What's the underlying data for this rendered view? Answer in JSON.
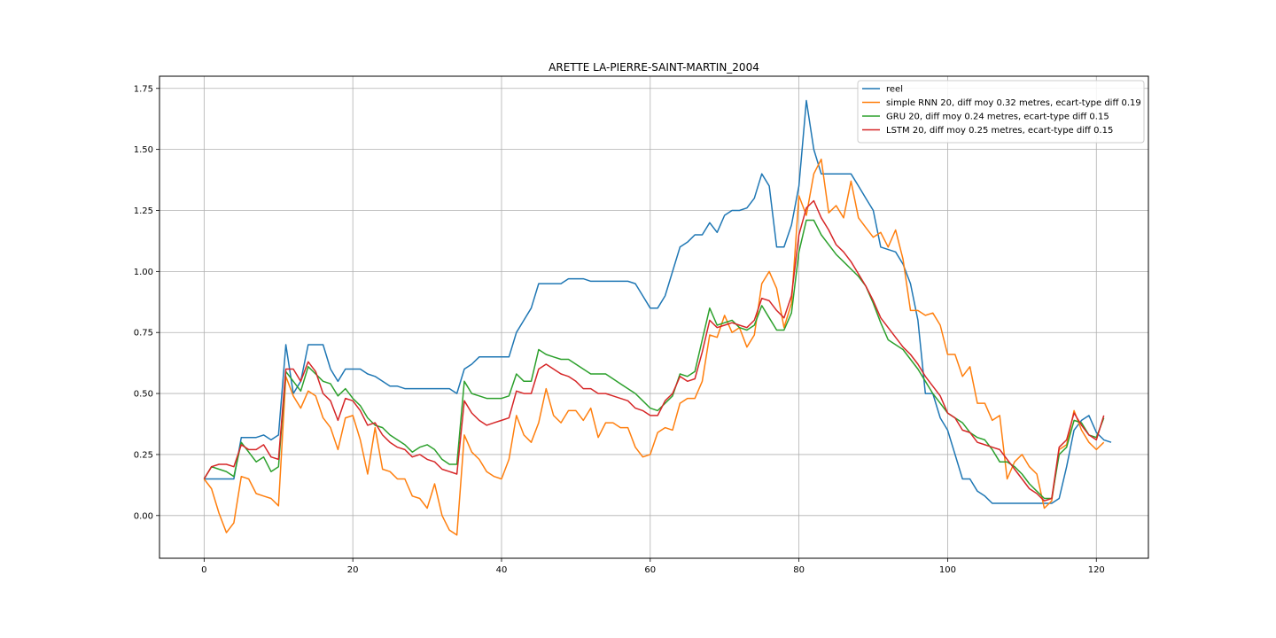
{
  "chart_data": {
    "type": "line",
    "title": "ARETTE LA-PIERRE-SAINT-MARTIN_2004",
    "xlabel": "",
    "ylabel": "",
    "xlim": [
      -6,
      127
    ],
    "ylim": [
      -0.175,
      1.8
    ],
    "xticks": [
      0,
      20,
      40,
      60,
      80,
      100,
      120
    ],
    "yticks": [
      0.0,
      0.25,
      0.5,
      0.75,
      1.0,
      1.25,
      1.5,
      1.75
    ],
    "ytick_labels": [
      "0.00",
      "0.25",
      "0.50",
      "0.75",
      "1.00",
      "1.25",
      "1.50",
      "1.75"
    ],
    "grid": true,
    "legend_position": "top-right",
    "series": [
      {
        "name": "reel",
        "color": "#1f77b4",
        "values": [
          0.15,
          0.15,
          0.15,
          0.15,
          0.15,
          0.32,
          0.32,
          0.32,
          0.33,
          0.31,
          0.33,
          0.7,
          0.5,
          0.55,
          0.7,
          0.7,
          0.7,
          0.6,
          0.55,
          0.6,
          0.6,
          0.6,
          0.58,
          0.57,
          0.55,
          0.53,
          0.53,
          0.52,
          0.52,
          0.52,
          0.52,
          0.52,
          0.52,
          0.52,
          0.5,
          0.6,
          0.62,
          0.65,
          0.65,
          0.65,
          0.65,
          0.65,
          0.75,
          0.8,
          0.85,
          0.95,
          0.95,
          0.95,
          0.95,
          0.97,
          0.97,
          0.97,
          0.96,
          0.96,
          0.96,
          0.96,
          0.96,
          0.96,
          0.95,
          0.9,
          0.85,
          0.85,
          0.9,
          1.0,
          1.1,
          1.12,
          1.15,
          1.15,
          1.2,
          1.16,
          1.23,
          1.25,
          1.25,
          1.26,
          1.3,
          1.4,
          1.35,
          1.1,
          1.1,
          1.19,
          1.35,
          1.7,
          1.5,
          1.4,
          1.4,
          1.4,
          1.4,
          1.4,
          1.35,
          1.3,
          1.25,
          1.1,
          1.09,
          1.08,
          1.03,
          0.95,
          0.8,
          0.5,
          0.5,
          0.4,
          0.35,
          0.25,
          0.15,
          0.15,
          0.1,
          0.08,
          0.05,
          0.05,
          0.05,
          0.05,
          0.05,
          0.05,
          0.05,
          0.05,
          0.05,
          0.07,
          0.2,
          0.35,
          0.39,
          0.41,
          0.34,
          0.31,
          0.3
        ]
      },
      {
        "name": "simple RNN 20, diff moy 0.32 metres, ecart-type diff 0.19",
        "color": "#ff7f0e",
        "values": [
          0.15,
          0.11,
          0.01,
          -0.07,
          -0.03,
          0.16,
          0.15,
          0.09,
          0.08,
          0.07,
          0.04,
          0.57,
          0.49,
          0.44,
          0.51,
          0.49,
          0.4,
          0.36,
          0.27,
          0.4,
          0.41,
          0.31,
          0.17,
          0.36,
          0.19,
          0.18,
          0.15,
          0.15,
          0.08,
          0.07,
          0.03,
          0.13,
          0.0,
          -0.06,
          -0.08,
          0.33,
          0.26,
          0.23,
          0.18,
          0.16,
          0.15,
          0.23,
          0.41,
          0.33,
          0.3,
          0.38,
          0.52,
          0.41,
          0.38,
          0.43,
          0.43,
          0.39,
          0.44,
          0.32,
          0.38,
          0.38,
          0.36,
          0.36,
          0.28,
          0.24,
          0.25,
          0.34,
          0.36,
          0.35,
          0.46,
          0.48,
          0.48,
          0.55,
          0.74,
          0.73,
          0.82,
          0.75,
          0.77,
          0.69,
          0.74,
          0.95,
          1.0,
          0.93,
          0.77,
          0.87,
          1.31,
          1.23,
          1.4,
          1.46,
          1.24,
          1.27,
          1.22,
          1.37,
          1.22,
          1.18,
          1.14,
          1.16,
          1.1,
          1.17,
          1.05,
          0.84,
          0.84,
          0.82,
          0.83,
          0.78,
          0.66,
          0.66,
          0.57,
          0.61,
          0.46,
          0.46,
          0.39,
          0.41,
          0.15,
          0.22,
          0.25,
          0.2,
          0.17,
          0.03,
          0.06,
          0.27,
          0.29,
          0.43,
          0.35,
          0.3,
          0.27,
          0.3
        ]
      },
      {
        "name": "GRU 20, diff moy 0.24 metres, ecart-type diff 0.15",
        "color": "#2ca02c",
        "values": [
          0.15,
          0.2,
          0.19,
          0.18,
          0.16,
          0.3,
          0.26,
          0.22,
          0.24,
          0.18,
          0.2,
          0.59,
          0.55,
          0.51,
          0.61,
          0.58,
          0.55,
          0.54,
          0.49,
          0.52,
          0.48,
          0.45,
          0.4,
          0.37,
          0.36,
          0.33,
          0.31,
          0.29,
          0.26,
          0.28,
          0.29,
          0.27,
          0.23,
          0.21,
          0.21,
          0.55,
          0.5,
          0.49,
          0.48,
          0.48,
          0.48,
          0.49,
          0.58,
          0.55,
          0.55,
          0.68,
          0.66,
          0.65,
          0.64,
          0.64,
          0.62,
          0.6,
          0.58,
          0.58,
          0.58,
          0.56,
          0.54,
          0.52,
          0.5,
          0.47,
          0.44,
          0.43,
          0.46,
          0.49,
          0.58,
          0.57,
          0.59,
          0.72,
          0.85,
          0.78,
          0.79,
          0.8,
          0.77,
          0.76,
          0.78,
          0.86,
          0.81,
          0.76,
          0.76,
          0.83,
          1.08,
          1.21,
          1.21,
          1.15,
          1.11,
          1.07,
          1.04,
          1.01,
          0.98,
          0.94,
          0.87,
          0.79,
          0.72,
          0.7,
          0.68,
          0.64,
          0.6,
          0.55,
          0.5,
          0.46,
          0.42,
          0.4,
          0.38,
          0.34,
          0.32,
          0.31,
          0.27,
          0.22,
          0.22,
          0.2,
          0.17,
          0.13,
          0.1,
          0.07,
          0.07,
          0.25,
          0.28,
          0.39,
          0.38,
          0.33,
          0.32,
          0.4
        ]
      },
      {
        "name": "LSTM 20, diff moy 0.25 metres, ecart-type diff 0.15",
        "color": "#d62728",
        "values": [
          0.15,
          0.2,
          0.21,
          0.21,
          0.2,
          0.29,
          0.27,
          0.27,
          0.29,
          0.24,
          0.23,
          0.6,
          0.6,
          0.55,
          0.63,
          0.59,
          0.5,
          0.47,
          0.39,
          0.48,
          0.47,
          0.43,
          0.37,
          0.38,
          0.33,
          0.3,
          0.28,
          0.27,
          0.24,
          0.25,
          0.23,
          0.22,
          0.19,
          0.18,
          0.17,
          0.47,
          0.42,
          0.39,
          0.37,
          0.38,
          0.39,
          0.4,
          0.51,
          0.5,
          0.5,
          0.6,
          0.62,
          0.6,
          0.58,
          0.57,
          0.55,
          0.52,
          0.52,
          0.5,
          0.5,
          0.49,
          0.48,
          0.47,
          0.44,
          0.43,
          0.41,
          0.41,
          0.47,
          0.5,
          0.57,
          0.55,
          0.56,
          0.67,
          0.8,
          0.77,
          0.78,
          0.79,
          0.78,
          0.77,
          0.8,
          0.89,
          0.88,
          0.84,
          0.81,
          0.9,
          1.15,
          1.26,
          1.29,
          1.22,
          1.17,
          1.11,
          1.08,
          1.04,
          0.99,
          0.94,
          0.88,
          0.81,
          0.77,
          0.73,
          0.69,
          0.66,
          0.62,
          0.57,
          0.53,
          0.49,
          0.42,
          0.4,
          0.35,
          0.34,
          0.3,
          0.29,
          0.28,
          0.27,
          0.23,
          0.19,
          0.15,
          0.11,
          0.09,
          0.06,
          0.07,
          0.28,
          0.31,
          0.42,
          0.37,
          0.33,
          0.31,
          0.41
        ]
      }
    ]
  }
}
